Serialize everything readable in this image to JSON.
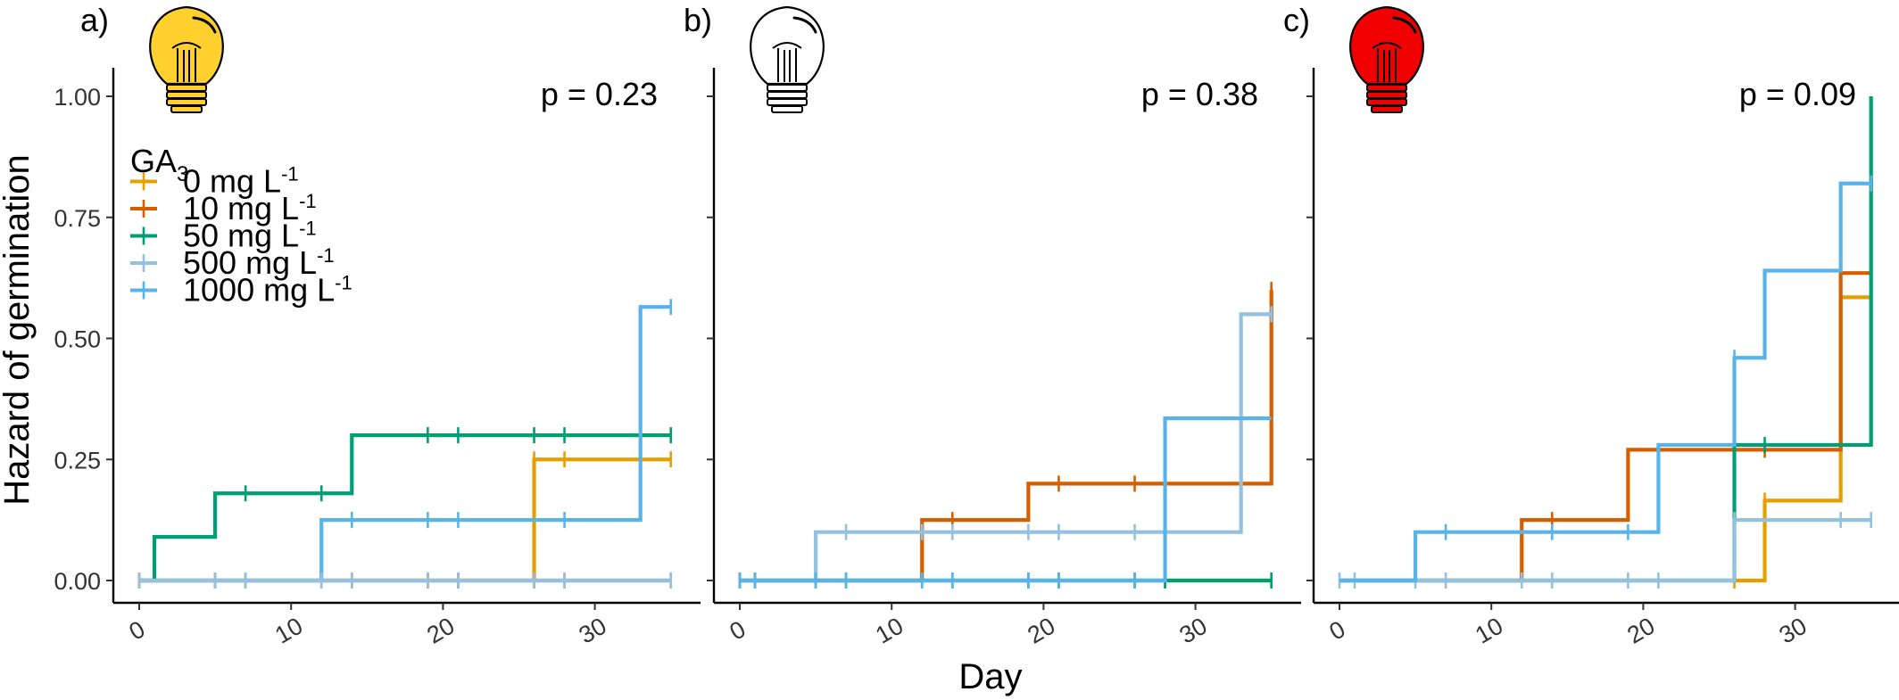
{
  "chart_data": {
    "type": "line",
    "subtype": "step",
    "xlabel": "Day",
    "ylabel": "Hazard of germination",
    "xlim": [
      -1,
      36
    ],
    "ylim": [
      -0.04,
      1.05
    ],
    "x_ticks": [
      0,
      10,
      20,
      30
    ],
    "x_tick_labels": [
      "0",
      "10",
      "20",
      "30"
    ],
    "y_ticks": [
      0.0,
      0.25,
      0.5,
      0.75,
      1.0
    ],
    "y_tick_labels": [
      "0.00",
      "0.25",
      "0.50",
      "0.75",
      "1.00"
    ],
    "grid": false,
    "legend": {
      "title": "GA",
      "title_subscript": "3",
      "position": "top-left",
      "entries": [
        {
          "label": "0 mg L",
          "superscript": "-1",
          "color": "#E69F00"
        },
        {
          "label": "10 mg L",
          "superscript": "-1",
          "color": "#D55E00"
        },
        {
          "label": "50 mg L",
          "superscript": "-1",
          "color": "#009E73"
        },
        {
          "label": "500 mg L",
          "superscript": "-1",
          "color": "#94C1DF"
        },
        {
          "label": "1000 mg L",
          "superscript": "-1",
          "color": "#56B4E9"
        }
      ]
    },
    "panels": [
      {
        "tag": "a)",
        "p_value": "p = 0.23",
        "bulb": {
          "icon": "lightbulb-icon",
          "fill": "#FFD02E"
        },
        "series": [
          {
            "name": "0 mg L-1",
            "color": "#E69F00",
            "steps": [
              [
                0,
                0
              ],
              [
                26,
                0.25
              ],
              [
                35,
                0.25
              ]
            ],
            "censor": [
              0,
              5,
              7,
              12,
              14,
              19,
              21,
              26,
              28,
              35
            ]
          },
          {
            "name": "10 mg L-1",
            "color": "#D55E00",
            "steps": [
              [
                0,
                0
              ],
              [
                35,
                0
              ]
            ],
            "censor": [
              0,
              5,
              7,
              12,
              14,
              19,
              21,
              26,
              28,
              35
            ]
          },
          {
            "name": "50 mg L-1",
            "color": "#009E73",
            "steps": [
              [
                1,
                0.09
              ],
              [
                5,
                0.18
              ],
              [
                14,
                0.3
              ],
              [
                35,
                0.3
              ]
            ],
            "censor": [
              7,
              12,
              19,
              21,
              26,
              28,
              35
            ]
          },
          {
            "name": "1000 mg L-1",
            "color": "#56B4E9",
            "steps": [
              [
                0,
                0
              ],
              [
                12,
                0.125
              ],
              [
                33,
                0.565
              ],
              [
                35,
                0.565
              ]
            ],
            "censor": [
              14,
              19,
              21,
              28,
              35
            ]
          },
          {
            "name": "500 mg L-1",
            "color": "#94C1DF",
            "steps": [
              [
                0,
                0
              ],
              [
                35,
                0
              ]
            ],
            "censor": [
              0,
              5,
              7,
              12,
              14,
              19,
              21,
              26,
              28,
              35
            ]
          }
        ]
      },
      {
        "tag": "b)",
        "p_value": "p = 0.38",
        "bulb": {
          "icon": "lightbulb-icon",
          "fill": "#FFFFFF"
        },
        "series": [
          {
            "name": "0 mg L-1",
            "color": "#E69F00",
            "steps": [
              [
                0,
                0
              ],
              [
                35,
                0
              ]
            ],
            "censor": [
              0,
              1,
              5,
              7,
              12,
              14,
              19,
              21,
              26,
              28,
              35
            ]
          },
          {
            "name": "50 mg L-1",
            "color": "#009E73",
            "steps": [
              [
                0,
                0
              ],
              [
                35,
                0
              ]
            ],
            "censor": [
              0,
              1,
              5,
              7,
              12,
              14,
              19,
              21,
              26,
              28,
              35
            ]
          },
          {
            "name": "10 mg L-1",
            "color": "#D55E00",
            "steps": [
              [
                0,
                0
              ],
              [
                12,
                0.125
              ],
              [
                19,
                0.2
              ],
              [
                35,
                0.6
              ]
            ],
            "censor": [
              14,
              21,
              26,
              35
            ]
          },
          {
            "name": "500 mg L-1",
            "color": "#94C1DF",
            "steps": [
              [
                0,
                0
              ],
              [
                5,
                0.1
              ],
              [
                33,
                0.55
              ],
              [
                35,
                0.55
              ]
            ],
            "censor": [
              7,
              12,
              14,
              19,
              21,
              26,
              35
            ]
          },
          {
            "name": "1000 mg L-1",
            "color": "#56B4E9",
            "steps": [
              [
                0,
                0
              ],
              [
                28,
                0.335
              ],
              [
                35,
                0.335
              ]
            ],
            "censor": [
              0,
              1,
              5,
              7,
              12,
              14,
              19,
              21,
              26
            ]
          }
        ]
      },
      {
        "tag": "c)",
        "p_value": "p = 0.09",
        "bulb": {
          "icon": "lightbulb-icon",
          "fill": "#F00000"
        },
        "series": [
          {
            "name": "0 mg L-1",
            "color": "#E69F00",
            "steps": [
              [
                0,
                0
              ],
              [
                28,
                0.165
              ],
              [
                33,
                0.585
              ],
              [
                35,
                0.585
              ]
            ],
            "censor": [
              26,
              28,
              35
            ]
          },
          {
            "name": "10 mg L-1",
            "color": "#D55E00",
            "steps": [
              [
                0,
                0
              ],
              [
                12,
                0.125
              ],
              [
                19,
                0.27
              ],
              [
                33,
                0.635
              ],
              [
                35,
                0.635
              ]
            ],
            "censor": [
              14,
              26,
              28,
              35
            ]
          },
          {
            "name": "50 mg L-1",
            "color": "#009E73",
            "steps": [
              [
                0,
                0
              ],
              [
                26,
                0.28
              ],
              [
                35,
                1.0
              ]
            ],
            "censor": [
              28
            ]
          },
          {
            "name": "500 mg L-1",
            "color": "#94C1DF",
            "steps": [
              [
                0,
                0
              ],
              [
                26,
                0.125
              ],
              [
                35,
                0.125
              ]
            ],
            "censor": [
              0,
              1,
              5,
              7,
              12,
              14,
              19,
              21,
              26,
              33,
              35
            ]
          },
          {
            "name": "1000 mg L-1",
            "color": "#56B4E9",
            "steps": [
              [
                0,
                0
              ],
              [
                5,
                0.1
              ],
              [
                21,
                0.28
              ],
              [
                26,
                0.46
              ],
              [
                28,
                0.64
              ],
              [
                33,
                0.82
              ],
              [
                35,
                0.82
              ]
            ],
            "censor": [
              7,
              14,
              19,
              26,
              35
            ]
          }
        ]
      }
    ]
  }
}
